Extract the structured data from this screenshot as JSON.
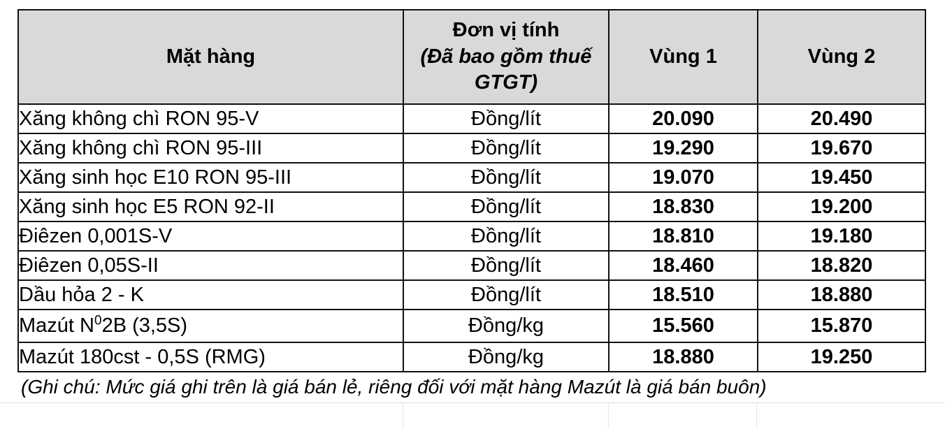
{
  "colors": {
    "header_bg": "#d9d9d9",
    "border": "#111111",
    "text": "#000000",
    "gridline": "#dcdcdc"
  },
  "table": {
    "header": {
      "product": "Mặt hàng",
      "unit_title": "Đơn vị tính",
      "unit_subtitle": "(Đã bao gồm thuế GTGT)",
      "region1": "Vùng 1",
      "region2": "Vùng 2"
    },
    "rows": [
      {
        "product": "Xăng không chì RON 95-V",
        "unit": "Đồng/lít",
        "region1": "20.090",
        "region2": "20.490"
      },
      {
        "product": "Xăng không chì RON 95-III",
        "unit": "Đồng/lít",
        "region1": "19.290",
        "region2": "19.670"
      },
      {
        "product": "Xăng sinh học E10 RON 95-III",
        "unit": "Đồng/lít",
        "region1": "19.070",
        "region2": "19.450"
      },
      {
        "product": "Xăng sinh học E5 RON 92-II",
        "unit": "Đồng/lít",
        "region1": "18.830",
        "region2": "19.200"
      },
      {
        "product": "Điêzen 0,001S-V",
        "unit": "Đồng/lít",
        "region1": "18.810",
        "region2": "19.180"
      },
      {
        "product": "Điêzen 0,05S-II",
        "unit": "Đồng/lít",
        "region1": "18.460",
        "region2": "18.820"
      },
      {
        "product": "Dầu hỏa 2 - K",
        "unit": "Đồng/lít",
        "region1": "18.510",
        "region2": "18.880"
      },
      {
        "product": "Mazút N⁰2B (3,5S)",
        "unit": "Đồng/kg",
        "region1": "15.560",
        "region2": "15.870"
      },
      {
        "product": "Mazút 180cst - 0,5S (RMG)",
        "unit": "Đồng/kg",
        "region1": "18.880",
        "region2": "19.250"
      }
    ],
    "note": "(Ghi chú: Mức giá ghi trên là giá bán lẻ, riêng đối với mặt hàng Mazút là giá bán buôn)"
  }
}
